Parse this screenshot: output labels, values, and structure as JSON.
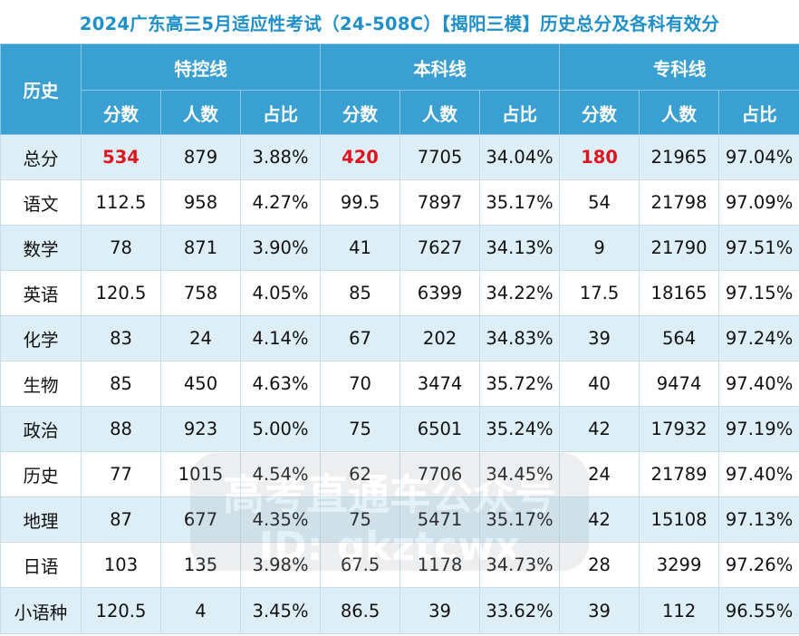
{
  "title": "2024广东高三5月适应性考试（24-508C）【揭阳三模】历史总分及各科有效分",
  "header": {
    "corner": "历史",
    "groups": [
      "特控线",
      "本科线",
      "专科线"
    ],
    "subcols": [
      "分数",
      "人数",
      "占比"
    ]
  },
  "rows": [
    {
      "subject": "总分",
      "cells": [
        "534",
        "879",
        "3.88%",
        "420",
        "7705",
        "34.04%",
        "180",
        "21965",
        "97.04%"
      ]
    },
    {
      "subject": "语文",
      "cells": [
        "112.5",
        "958",
        "4.27%",
        "99.5",
        "7897",
        "35.17%",
        "54",
        "21798",
        "97.09%"
      ]
    },
    {
      "subject": "数学",
      "cells": [
        "78",
        "871",
        "3.90%",
        "41",
        "7627",
        "34.13%",
        "9",
        "21790",
        "97.51%"
      ]
    },
    {
      "subject": "英语",
      "cells": [
        "120.5",
        "758",
        "4.05%",
        "85",
        "6399",
        "34.22%",
        "17.5",
        "18165",
        "97.15%"
      ]
    },
    {
      "subject": "化学",
      "cells": [
        "83",
        "24",
        "4.14%",
        "67",
        "202",
        "34.83%",
        "39",
        "564",
        "97.24%"
      ]
    },
    {
      "subject": "生物",
      "cells": [
        "85",
        "450",
        "4.63%",
        "70",
        "3474",
        "35.72%",
        "40",
        "9474",
        "97.40%"
      ]
    },
    {
      "subject": "政治",
      "cells": [
        "88",
        "923",
        "5.00%",
        "75",
        "6501",
        "35.24%",
        "42",
        "17932",
        "97.19%"
      ]
    },
    {
      "subject": "历史",
      "cells": [
        "77",
        "1015",
        "4.54%",
        "62",
        "7706",
        "34.45%",
        "24",
        "21789",
        "97.40%"
      ]
    },
    {
      "subject": "地理",
      "cells": [
        "87",
        "677",
        "4.35%",
        "75",
        "5471",
        "35.17%",
        "42",
        "15108",
        "97.13%"
      ]
    },
    {
      "subject": "日语",
      "cells": [
        "103",
        "135",
        "3.98%",
        "67.5",
        "1178",
        "34.73%",
        "28",
        "3299",
        "97.26%"
      ]
    },
    {
      "subject": "小语种",
      "cells": [
        "120.5",
        "4",
        "3.45%",
        "86.5",
        "39",
        "33.62%",
        "39",
        "112",
        "96.55%"
      ]
    }
  ],
  "watermark": {
    "line1": "高考直通车公众号",
    "line2": "ID: gkztcwx"
  },
  "colors": {
    "header_bg": "#3aa0d2",
    "title_text": "#1f8fc9",
    "stripe": "#ddeef7",
    "highlight": "#e0141f"
  }
}
